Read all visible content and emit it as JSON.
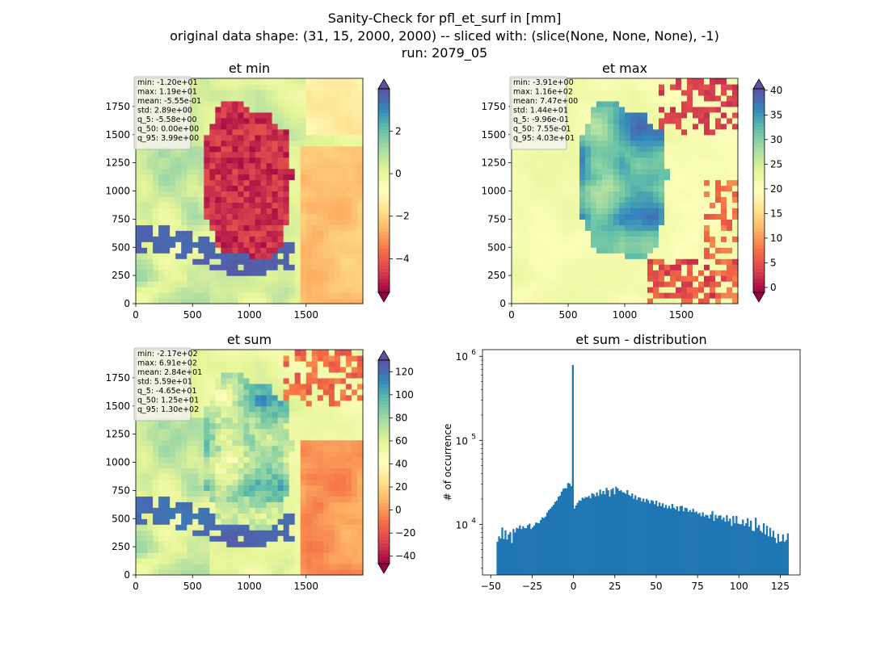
{
  "figure": {
    "title_lines": [
      "Sanity-Check for pfl_et_surf in [mm]",
      "original data shape: (31, 15, 2000, 2000) -- sliced with: (slice(None, None, None), -1)",
      "run: 2079_05"
    ]
  },
  "chart_data": [
    {
      "type": "heatmap",
      "title": "et min",
      "xlim": [
        0,
        2000
      ],
      "ylim": [
        0,
        2000
      ],
      "xticks": [
        0,
        500,
        1000,
        1500
      ],
      "yticks": [
        0,
        250,
        500,
        750,
        1000,
        1250,
        1500,
        1750
      ],
      "colormap": "Spectral",
      "colorbar": {
        "range": [
          -5.58,
          3.99
        ],
        "ticks": [
          2,
          0,
          -2,
          -4
        ],
        "tick_labels": [
          "2",
          "0",
          "−2",
          "−4"
        ],
        "extend": "both"
      },
      "stats": [
        "min: -1.20e+01",
        "max: 1.19e+01",
        "mean: -5.55e-01",
        "std: 2.89e+00",
        "q_5: -5.58e+00",
        "q_50: 0.00e+00",
        "q_95: 3.99e+00"
      ]
    },
    {
      "type": "heatmap",
      "title": "et max",
      "xlim": [
        0,
        2000
      ],
      "ylim": [
        0,
        2000
      ],
      "xticks": [
        0,
        500,
        1000,
        1500
      ],
      "yticks": [
        0,
        250,
        500,
        750,
        1000,
        1250,
        1500,
        1750
      ],
      "colormap": "Spectral",
      "colorbar": {
        "range": [
          -1.0,
          40.3
        ],
        "ticks": [
          40,
          35,
          30,
          25,
          20,
          15,
          10,
          5,
          0
        ],
        "tick_labels": [
          "40",
          "35",
          "30",
          "25",
          "20",
          "15",
          "10",
          "5",
          "0"
        ],
        "extend": "both"
      },
      "stats": [
        "min: -3.91e+00",
        "max: 1.16e+02",
        "mean: 7.47e+00",
        "std: 1.44e+01",
        "q_5: -9.96e-01",
        "q_50: 7.55e-01",
        "q_95: 4.03e+01"
      ]
    },
    {
      "type": "heatmap",
      "title": "et sum",
      "xlim": [
        0,
        2000
      ],
      "ylim": [
        0,
        2000
      ],
      "xticks": [
        0,
        500,
        1000,
        1500
      ],
      "yticks": [
        0,
        250,
        500,
        750,
        1000,
        1250,
        1500,
        1750
      ],
      "colormap": "Spectral",
      "colorbar": {
        "range": [
          -46.5,
          130
        ],
        "ticks": [
          120,
          100,
          80,
          60,
          40,
          20,
          0,
          -20,
          -40
        ],
        "tick_labels": [
          "120",
          "100",
          "80",
          "60",
          "40",
          "20",
          "0",
          "−20",
          "−40"
        ],
        "extend": "both"
      },
      "stats": [
        "min: -2.17e+02",
        "max: 6.91e+02",
        "mean: 2.84e+01",
        "std: 5.59e+01",
        "q_5: -4.65e+01",
        "q_50: 1.25e+01",
        "q_95: 1.30e+02"
      ]
    },
    {
      "type": "bar",
      "title": "et sum - distribution",
      "ylabel": "# of occurrence",
      "yscale": "log",
      "xlim": [
        -55,
        137
      ],
      "ylim": [
        2500,
        1200000
      ],
      "xticks": [
        -50,
        -25,
        0,
        25,
        50,
        75,
        100,
        125
      ],
      "xtick_labels": [
        "−50",
        "−25",
        "0",
        "25",
        "50",
        "75",
        "100",
        "125"
      ],
      "yticks": [
        10000,
        100000,
        1000000
      ],
      "ytick_labels": [
        "10",
        "10",
        "10"
      ],
      "ytick_exponents": [
        "4",
        "5",
        "6"
      ],
      "bin_range": [
        -46.5,
        130
      ],
      "bar_color": "#1f77b4",
      "values": [
        6200,
        7200,
        6800,
        9200,
        6700,
        8500,
        6600,
        7600,
        8100,
        6000,
        8800,
        8000,
        9100,
        8900,
        9700,
        8800,
        9500,
        9000,
        9000,
        9800,
        10200,
        8800,
        9200,
        9700,
        10500,
        10400,
        10300,
        11300,
        12100,
        11900,
        12400,
        13800,
        14800,
        15400,
        16200,
        17100,
        18500,
        19200,
        21300,
        22000,
        24500,
        26500,
        27000,
        26800,
        31000,
        30500,
        28500,
        790000,
        15400,
        16800,
        18000,
        19300,
        19100,
        20800,
        20300,
        21200,
        21000,
        21800,
        20500,
        23500,
        22900,
        21500,
        24000,
        21800,
        26000,
        23000,
        25000,
        22800,
        27200,
        25500,
        21500,
        26000,
        27000,
        22800,
        28100,
        26800,
        25000,
        25500,
        24200,
        23900,
        23100,
        25600,
        22400,
        21700,
        23300,
        20100,
        22200,
        19600,
        21000,
        20700,
        18800,
        20300,
        18400,
        20100,
        19300,
        17800,
        19400,
        19000,
        17400,
        19100,
        16400,
        18200,
        16500,
        17800,
        15800,
        17000,
        15500,
        16600,
        15400,
        17500,
        15800,
        15100,
        16400,
        14400,
        16500,
        16600,
        14300,
        15800,
        15600,
        14100,
        14800,
        14000,
        15300,
        13900,
        14200,
        13300,
        13700,
        12500,
        13900,
        12400,
        13000,
        12800,
        11800,
        13100,
        14400,
        11000,
        13000,
        11800,
        12700,
        12800,
        11400,
        12100,
        10800,
        12900,
        10900,
        11700,
        9600,
        12600,
        10300,
        12600,
        10200,
        10100,
        10000,
        11400,
        9600,
        10300,
        11800,
        9400,
        11100,
        8400,
        8300,
        12000,
        9100,
        9800,
        8400,
        8000,
        10300,
        7600,
        9600,
        7200,
        9100,
        7100,
        8400,
        6900,
        6000,
        7700,
        6200,
        6300,
        7600,
        6200,
        6500,
        7800
      ]
    }
  ]
}
